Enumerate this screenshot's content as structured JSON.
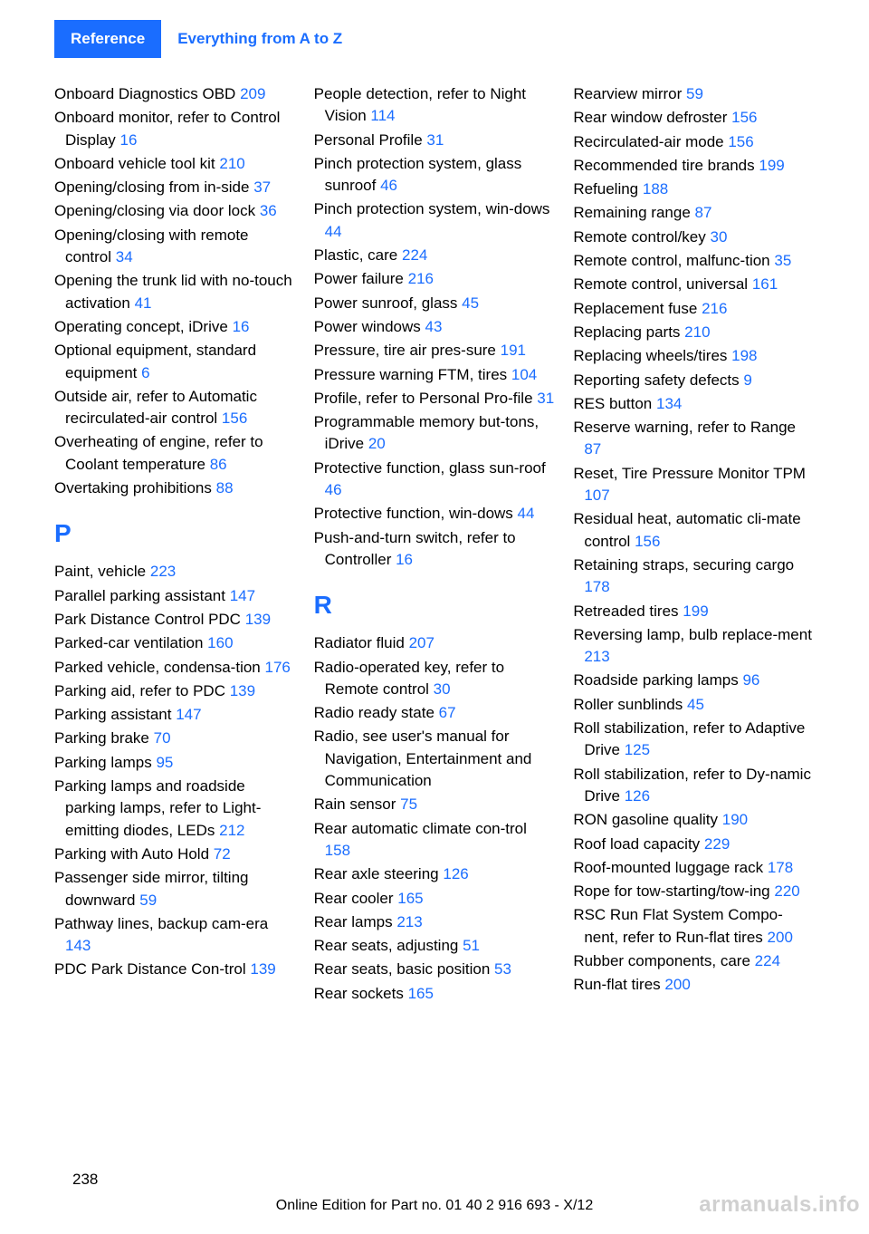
{
  "header": {
    "tab": "Reference",
    "title": "Everything from A to Z"
  },
  "sections": [
    {
      "letter": null,
      "entries": [
        {
          "text": "Onboard Diagnostics OBD",
          "page": "209"
        },
        {
          "text": "Onboard monitor, refer to Control Display",
          "page": "16"
        },
        {
          "text": "Onboard vehicle tool kit",
          "page": "210"
        },
        {
          "text": "Opening/closing from in‐side",
          "page": "37"
        },
        {
          "text": "Opening/closing via door lock",
          "page": "36"
        },
        {
          "text": "Opening/closing with remote control",
          "page": "34"
        },
        {
          "text": "Opening the trunk lid with no-touch activation",
          "page": "41"
        },
        {
          "text": "Operating concept, iDrive",
          "page": "16"
        },
        {
          "text": "Optional equipment, standard equipment",
          "page": "6"
        },
        {
          "text": "Outside air, refer to Automatic recirculated-air control",
          "page": "156"
        },
        {
          "text": "Overheating of engine, refer to Coolant temperature",
          "page": "86"
        },
        {
          "text": "Overtaking prohibitions",
          "page": "88"
        }
      ]
    },
    {
      "letter": "P",
      "entries": [
        {
          "text": "Paint, vehicle",
          "page": "223"
        },
        {
          "text": "Parallel parking assistant",
          "page": "147"
        },
        {
          "text": "Park Distance Control PDC",
          "page": "139"
        },
        {
          "text": "Parked-car ventilation",
          "page": "160"
        },
        {
          "text": "Parked vehicle, condensa‐tion",
          "page": "176"
        },
        {
          "text": "Parking aid, refer to PDC",
          "page": "139"
        },
        {
          "text": "Parking assistant",
          "page": "147"
        },
        {
          "text": "Parking brake",
          "page": "70"
        },
        {
          "text": "Parking lamps",
          "page": "95"
        },
        {
          "text": "Parking lamps and roadside parking lamps, refer to Light-emitting diodes, LEDs",
          "page": "212"
        },
        {
          "text": "Parking with Auto Hold",
          "page": "72"
        },
        {
          "text": "Passenger side mirror, tilting downward",
          "page": "59"
        },
        {
          "text": "Pathway lines, backup cam‐era",
          "page": "143"
        },
        {
          "text": "PDC Park Distance Con‐trol",
          "page": "139"
        },
        {
          "text": "People detection, refer to Night Vision",
          "page": "114"
        },
        {
          "text": "Personal Profile",
          "page": "31"
        },
        {
          "text": "Pinch protection system, glass sunroof",
          "page": "46"
        },
        {
          "text": "Pinch protection system, win‐dows",
          "page": "44"
        },
        {
          "text": "Plastic, care",
          "page": "224"
        },
        {
          "text": "Power failure",
          "page": "216"
        },
        {
          "text": "Power sunroof, glass",
          "page": "45"
        },
        {
          "text": "Power windows",
          "page": "43"
        },
        {
          "text": "Pressure, tire air pres‐sure",
          "page": "191"
        },
        {
          "text": "Pressure warning FTM, tires",
          "page": "104"
        },
        {
          "text": "Profile, refer to Personal Pro‐file",
          "page": "31"
        },
        {
          "text": "Programmable memory but‐tons, iDrive",
          "page": "20"
        },
        {
          "text": "Protective function, glass sun‐roof",
          "page": "46"
        },
        {
          "text": "Protective function, win‐dows",
          "page": "44"
        },
        {
          "text": "Push-and-turn switch, refer to Controller",
          "page": "16"
        }
      ]
    },
    {
      "letter": "R",
      "entries": [
        {
          "text": "Radiator fluid",
          "page": "207"
        },
        {
          "text": "Radio-operated key, refer to Remote control",
          "page": "30"
        },
        {
          "text": "Radio ready state",
          "page": "67"
        },
        {
          "text": "Radio, see user's manual for Navigation, Entertainment and Communication",
          "page": null
        },
        {
          "text": "Rain sensor",
          "page": "75"
        },
        {
          "text": "Rear automatic climate con‐trol",
          "page": "158"
        },
        {
          "text": "Rear axle steering",
          "page": "126"
        },
        {
          "text": "Rear cooler",
          "page": "165"
        },
        {
          "text": "Rear lamps",
          "page": "213"
        },
        {
          "text": "Rear seats, adjusting",
          "page": "51"
        },
        {
          "text": "Rear seats, basic position",
          "page": "53"
        },
        {
          "text": "Rear sockets",
          "page": "165"
        },
        {
          "text": "Rearview mirror",
          "page": "59"
        },
        {
          "text": "Rear window defroster",
          "page": "156"
        },
        {
          "text": "Recirculated-air mode",
          "page": "156"
        },
        {
          "text": "Recommended tire brands",
          "page": "199"
        },
        {
          "text": "Refueling",
          "page": "188"
        },
        {
          "text": "Remaining range",
          "page": "87"
        },
        {
          "text": "Remote control/key",
          "page": "30"
        },
        {
          "text": "Remote control, malfunc‐tion",
          "page": "35"
        },
        {
          "text": "Remote control, universal",
          "page": "161"
        },
        {
          "text": "Replacement fuse",
          "page": "216"
        },
        {
          "text": "Replacing parts",
          "page": "210"
        },
        {
          "text": "Replacing wheels/tires",
          "page": "198"
        },
        {
          "text": "Reporting safety defects",
          "page": "9"
        },
        {
          "text": "RES button",
          "page": "134"
        },
        {
          "text": "Reserve warning, refer to Range",
          "page": "87"
        },
        {
          "text": "Reset, Tire Pressure Monitor TPM",
          "page": "107"
        },
        {
          "text": "Residual heat, automatic cli‐mate control",
          "page": "156"
        },
        {
          "text": "Retaining straps, securing cargo",
          "page": "178"
        },
        {
          "text": "Retreaded tires",
          "page": "199"
        },
        {
          "text": "Reversing lamp, bulb replace‐ment",
          "page": "213"
        },
        {
          "text": "Roadside parking lamps",
          "page": "96"
        },
        {
          "text": "Roller sunblinds",
          "page": "45"
        },
        {
          "text": "Roll stabilization, refer to Adaptive Drive",
          "page": "125"
        },
        {
          "text": "Roll stabilization, refer to Dy‐namic Drive",
          "page": "126"
        },
        {
          "text": "RON gasoline quality",
          "page": "190"
        },
        {
          "text": "Roof load capacity",
          "page": "229"
        },
        {
          "text": "Roof-mounted luggage rack",
          "page": "178"
        },
        {
          "text": "Rope for tow-starting/tow‐ing",
          "page": "220"
        },
        {
          "text": "RSC Run Flat System Compo‐nent, refer to Run-flat tires",
          "page": "200"
        },
        {
          "text": "Rubber components, care",
          "page": "224"
        },
        {
          "text": "Run-flat tires",
          "page": "200"
        }
      ]
    }
  ],
  "pageNumber": "238",
  "footer": "Online Edition for Part no. 01 40 2 916 693 - X/12",
  "watermark": "armanuals.info"
}
